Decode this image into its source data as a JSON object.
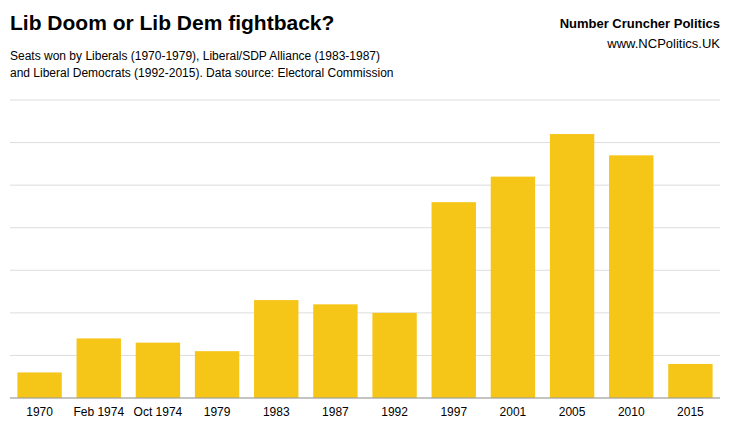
{
  "chart_data": {
    "type": "bar",
    "title": "Lib Doom or Lib Dem fightback?",
    "subtitle": [
      "Seats won by Liberals (1970-1979), Liberal/SDP Alliance (1983-1987)",
      "and Liberal Democrats (1992-2015). Data source: Electoral Commission"
    ],
    "annotations": [
      "Number Cruncher Politics",
      "www.NCPolitics.UK"
    ],
    "categories": [
      "1970",
      "Feb 1974",
      "Oct 1974",
      "1979",
      "1983",
      "1987",
      "1992",
      "1997",
      "2001",
      "2005",
      "2010",
      "2015"
    ],
    "values": [
      6,
      14,
      13,
      11,
      23,
      22,
      20,
      46,
      52,
      62,
      57,
      8
    ],
    "color": "#F5C518",
    "ylim": [
      0,
      70
    ],
    "yticks": [
      0,
      10,
      20,
      30,
      40,
      50,
      60,
      70
    ],
    "grid": true,
    "tick_labels": "x"
  }
}
